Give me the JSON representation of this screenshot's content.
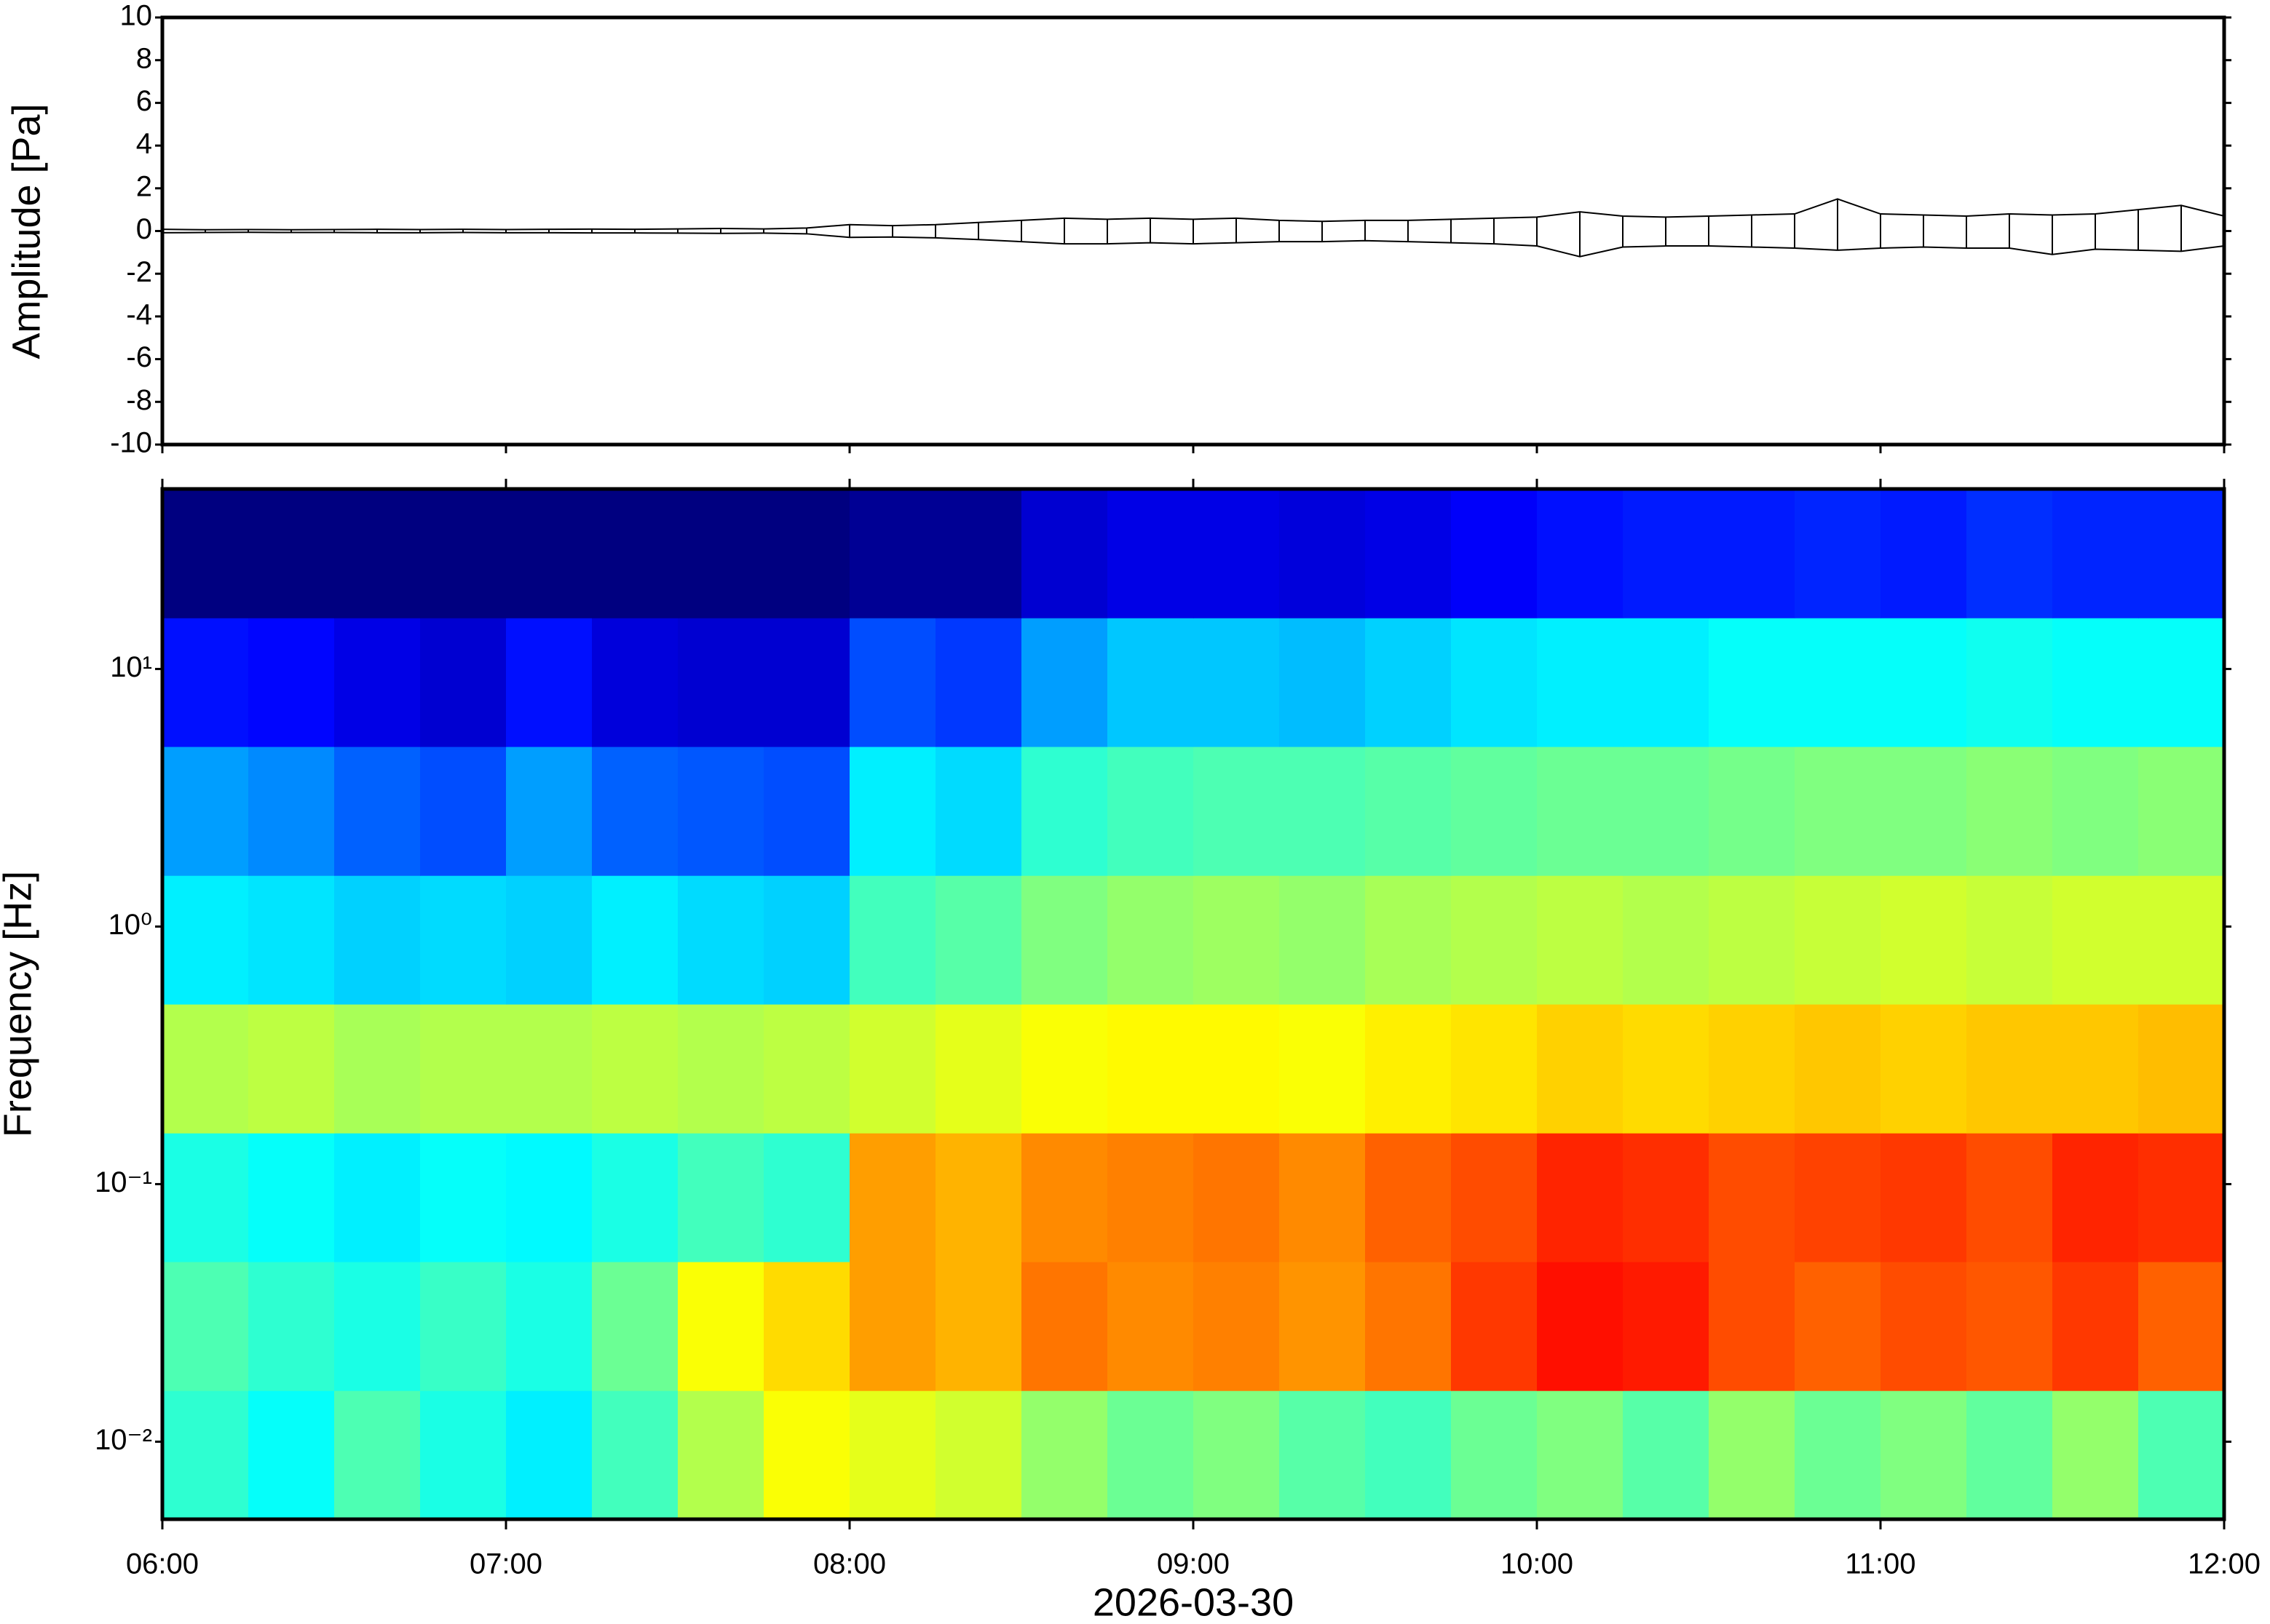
{
  "chart_data": [
    {
      "type": "line",
      "ylabel": "Amplitude [Pa]",
      "color": "#000000",
      "xlim": [
        6,
        12
      ],
      "ylim": [
        -10,
        10
      ],
      "yticks": [
        -10,
        -8,
        -6,
        -4,
        -2,
        0,
        2,
        4,
        6,
        8,
        10
      ],
      "x": [
        6.0,
        6.125,
        6.25,
        6.375,
        6.5,
        6.625,
        6.75,
        6.875,
        7.0,
        7.125,
        7.25,
        7.375,
        7.5,
        7.625,
        7.75,
        7.875,
        8.0,
        8.125,
        8.25,
        8.375,
        8.5,
        8.625,
        8.75,
        8.875,
        9.0,
        9.125,
        9.25,
        9.375,
        9.5,
        9.625,
        9.75,
        9.875,
        10.0,
        10.125,
        10.25,
        10.375,
        10.5,
        10.625,
        10.75,
        10.875,
        11.0,
        11.125,
        11.25,
        11.375,
        11.5,
        11.625,
        11.75,
        11.875,
        12.0
      ],
      "series": [
        {
          "values": [
            0.08,
            0.06,
            0.07,
            0.06,
            0.07,
            0.08,
            0.07,
            0.08,
            0.07,
            0.08,
            0.09,
            0.08,
            0.1,
            0.12,
            0.1,
            0.14,
            0.3,
            0.25,
            0.3,
            0.4,
            0.5,
            0.6,
            0.55,
            0.6,
            0.55,
            0.6,
            0.5,
            0.45,
            0.5,
            0.5,
            0.55,
            0.6,
            0.65,
            0.9,
            0.7,
            0.65,
            0.7,
            0.75,
            0.8,
            1.5,
            0.8,
            0.75,
            0.7,
            0.8,
            0.75,
            0.8,
            1.0,
            1.2,
            0.7
          ]
        },
        {
          "values": [
            -0.08,
            -0.07,
            -0.06,
            -0.07,
            -0.07,
            -0.08,
            -0.08,
            -0.07,
            -0.08,
            -0.08,
            -0.09,
            -0.09,
            -0.1,
            -0.11,
            -0.1,
            -0.13,
            -0.3,
            -0.28,
            -0.32,
            -0.4,
            -0.5,
            -0.6,
            -0.6,
            -0.55,
            -0.6,
            -0.55,
            -0.5,
            -0.5,
            -0.45,
            -0.5,
            -0.55,
            -0.6,
            -0.7,
            -1.2,
            -0.75,
            -0.7,
            -0.7,
            -0.75,
            -0.8,
            -0.9,
            -0.8,
            -0.75,
            -0.8,
            -0.8,
            -1.1,
            -0.85,
            -0.9,
            -0.95,
            -0.7
          ]
        }
      ]
    },
    {
      "type": "heatmap",
      "ylabel": "Frequency [Hz]",
      "xlabel": "2026-03-30",
      "colormap": "jet",
      "log_y": true,
      "xlim": [
        6,
        12
      ],
      "ylim": [
        0.005,
        50
      ],
      "xticks": [
        {
          "value": 6,
          "label": "06:00"
        },
        {
          "value": 7,
          "label": "07:00"
        },
        {
          "value": 8,
          "label": "08:00"
        },
        {
          "value": 9,
          "label": "09:00"
        },
        {
          "value": 10,
          "label": "10:00"
        },
        {
          "value": 11,
          "label": "11:00"
        },
        {
          "value": 12,
          "label": "12:00"
        }
      ],
      "yticks": [
        {
          "value": 0.01,
          "label": "10⁻²"
        },
        {
          "value": 0.1,
          "label": "10⁻¹"
        },
        {
          "value": 1,
          "label": "10⁰"
        },
        {
          "value": 10,
          "label": "10¹"
        }
      ],
      "x_edges": [
        6.0,
        6.25,
        6.5,
        6.75,
        7.0,
        7.25,
        7.5,
        7.75,
        8.0,
        8.25,
        8.5,
        8.75,
        9.0,
        9.25,
        9.5,
        9.75,
        10.0,
        10.25,
        10.5,
        10.75,
        11.0,
        11.25,
        11.5,
        11.75,
        12.0
      ],
      "y_edges": [
        0.005,
        0.0158,
        0.05,
        0.158,
        0.5,
        1.58,
        5,
        15.8,
        50
      ],
      "values": [
        [
          0.42,
          0.38,
          0.45,
          0.4,
          0.36,
          0.44,
          0.55,
          0.62,
          0.6,
          0.58,
          0.52,
          0.48,
          0.5,
          0.46,
          0.44,
          0.48,
          0.5,
          0.46,
          0.52,
          0.48,
          0.5,
          0.47,
          0.52,
          0.45
        ],
        [
          0.45,
          0.42,
          0.4,
          0.43,
          0.4,
          0.48,
          0.62,
          0.66,
          0.72,
          0.7,
          0.76,
          0.74,
          0.75,
          0.73,
          0.76,
          0.82,
          0.86,
          0.85,
          0.8,
          0.78,
          0.8,
          0.79,
          0.82,
          0.78
        ],
        [
          0.4,
          0.38,
          0.36,
          0.38,
          0.37,
          0.4,
          0.44,
          0.42,
          0.72,
          0.7,
          0.74,
          0.75,
          0.76,
          0.74,
          0.78,
          0.8,
          0.84,
          0.83,
          0.8,
          0.81,
          0.82,
          0.8,
          0.84,
          0.83
        ],
        [
          0.55,
          0.56,
          0.54,
          0.55,
          0.55,
          0.56,
          0.55,
          0.56,
          0.58,
          0.6,
          0.62,
          0.63,
          0.63,
          0.62,
          0.64,
          0.65,
          0.67,
          0.66,
          0.67,
          0.68,
          0.67,
          0.68,
          0.68,
          0.69
        ],
        [
          0.36,
          0.35,
          0.33,
          0.34,
          0.33,
          0.36,
          0.34,
          0.33,
          0.44,
          0.46,
          0.5,
          0.52,
          0.53,
          0.52,
          0.54,
          0.55,
          0.56,
          0.55,
          0.56,
          0.57,
          0.58,
          0.57,
          0.58,
          0.58
        ],
        [
          0.28,
          0.26,
          0.22,
          0.2,
          0.28,
          0.22,
          0.21,
          0.2,
          0.36,
          0.34,
          0.42,
          0.44,
          0.45,
          0.45,
          0.46,
          0.47,
          0.48,
          0.48,
          0.49,
          0.5,
          0.5,
          0.51,
          0.5,
          0.51
        ],
        [
          0.14,
          0.13,
          0.1,
          0.08,
          0.14,
          0.09,
          0.08,
          0.08,
          0.2,
          0.18,
          0.28,
          0.32,
          0.32,
          0.31,
          0.33,
          0.35,
          0.36,
          0.36,
          0.38,
          0.38,
          0.38,
          0.39,
          0.38,
          0.38
        ],
        [
          0.0,
          0.0,
          0.0,
          0.0,
          0.0,
          0.0,
          0.0,
          0.0,
          0.02,
          0.02,
          0.08,
          0.1,
          0.1,
          0.09,
          0.1,
          0.12,
          0.14,
          0.15,
          0.15,
          0.16,
          0.15,
          0.17,
          0.16,
          0.16
        ]
      ]
    }
  ]
}
